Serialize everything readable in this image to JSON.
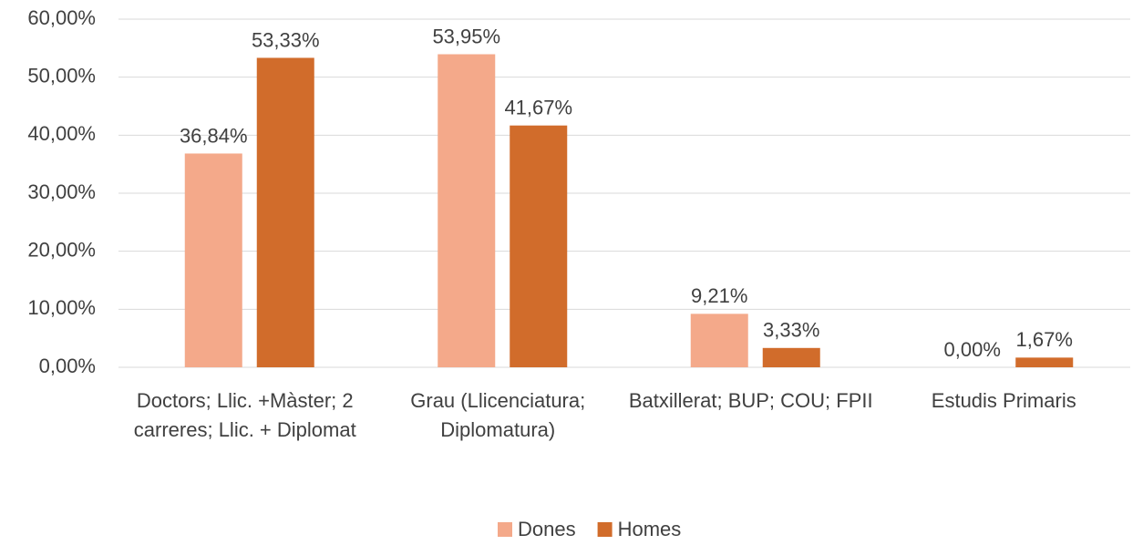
{
  "chart_data": {
    "type": "bar",
    "categories": [
      "Doctors; Llic. +Màster; 2 carreres; Llic. + Diplomat",
      "Grau (Llicenciatura; Diplomatura)",
      "Batxillerat; BUP; COU; FPII",
      "Estudis Primaris"
    ],
    "series": [
      {
        "name": "Dones",
        "color": "#f4a98a",
        "values": [
          36.84,
          53.95,
          9.21,
          0
        ],
        "value_labels": [
          "36,84%",
          "53,95%",
          "9,21%",
          "0,00%"
        ]
      },
      {
        "name": "Homes",
        "color": "#d16c2b",
        "values": [
          53.33,
          41.67,
          3.33,
          1.67
        ],
        "value_labels": [
          "53,33%",
          "41,67%",
          "3,33%",
          "1,67%"
        ]
      }
    ],
    "ylim": [
      0,
      60
    ],
    "yticks": [
      {
        "value": 0,
        "label": "0,00%"
      },
      {
        "value": 10,
        "label": "10,00%"
      },
      {
        "value": 20,
        "label": "20,00%"
      },
      {
        "value": 30,
        "label": "30,00%"
      },
      {
        "value": 40,
        "label": "40,00%"
      },
      {
        "value": 50,
        "label": "50,00%"
      },
      {
        "value": 60,
        "label": "60,00%"
      }
    ],
    "grid": true,
    "legend": "bottom"
  }
}
